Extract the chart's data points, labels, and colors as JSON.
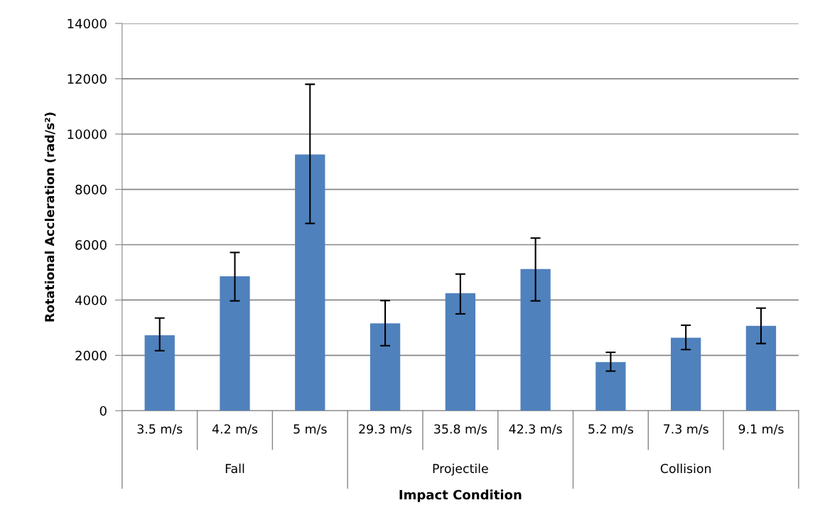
{
  "chart_data": {
    "type": "bar",
    "categories": [
      "3.5 m/s",
      "4.2 m/s",
      "5 m/s",
      "29.3 m/s",
      "35.8 m/s",
      "42.3 m/s",
      "5.2 m/s",
      "7.3 m/s",
      "9.1 m/s"
    ],
    "values": [
      2730,
      4860,
      9260,
      3160,
      4250,
      5120,
      1760,
      2640,
      3070
    ],
    "errors": [
      [
        2170,
        3350
      ],
      [
        3970,
        5720
      ],
      [
        6770,
        11800
      ],
      [
        2350,
        3980
      ],
      [
        3500,
        4940
      ],
      [
        3970,
        6240
      ],
      [
        1430,
        2110
      ],
      [
        2210,
        3090
      ],
      [
        2430,
        3710
      ]
    ],
    "color": "#4f81bd",
    "xlabel": "Impact Condition",
    "ylabel": "Rotational Accleration (rad/s²)",
    "annotations": [
      "Fall",
      "Projectile",
      "Collision"
    ],
    "ylim": [
      0,
      14000
    ],
    "yticks": [
      0,
      2000,
      4000,
      6000,
      8000,
      10000,
      12000,
      14000
    ],
    "grid": "y"
  }
}
